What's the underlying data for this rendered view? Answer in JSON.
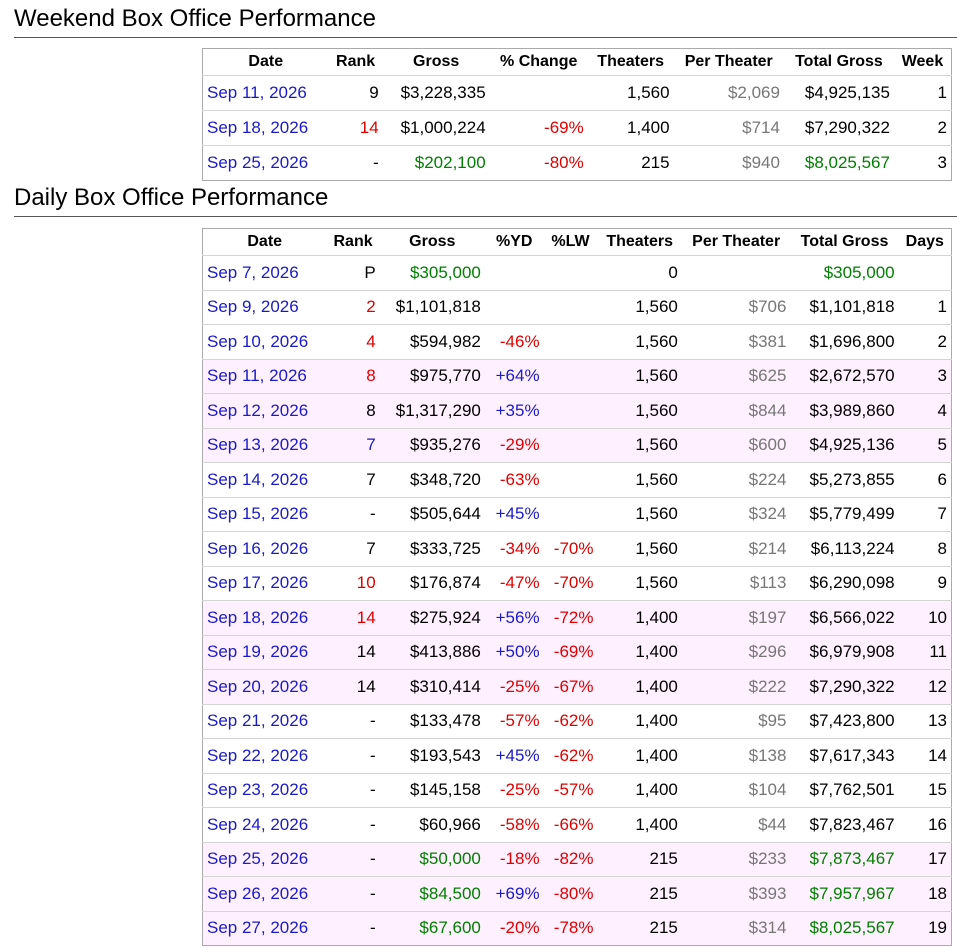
{
  "weekend": {
    "title": "Weekend Box Office Performance",
    "headers": [
      "Date",
      "Rank",
      "Gross",
      "% Change",
      "Theaters",
      "Per Theater",
      "Total Gross",
      "Week"
    ],
    "rows": [
      {
        "date": "Sep 11, 2026",
        "rank": "9",
        "rank_color": "black",
        "gross": "$3,228,335",
        "gross_color": "black",
        "change": "",
        "theaters": "1,560",
        "per_theater": "$2,069",
        "total": "$4,925,135",
        "total_color": "black",
        "week": "1"
      },
      {
        "date": "Sep 18, 2026",
        "rank": "14",
        "rank_color": "red",
        "gross": "$1,000,224",
        "gross_color": "black",
        "change": "-69%",
        "theaters": "1,400",
        "per_theater": "$714",
        "total": "$7,290,322",
        "total_color": "black",
        "week": "2"
      },
      {
        "date": "Sep 25, 2026",
        "rank": "-",
        "rank_color": "black",
        "gross": "$202,100",
        "gross_color": "green",
        "change": "-80%",
        "theaters": "215",
        "per_theater": "$940",
        "total": "$8,025,567",
        "total_color": "green",
        "week": "3"
      }
    ]
  },
  "daily": {
    "title": "Daily Box Office Performance",
    "headers": [
      "Date",
      "Rank",
      "Gross",
      "%YD",
      "%LW",
      "Theaters",
      "Per Theater",
      "Total Gross",
      "Days"
    ],
    "rows": [
      {
        "date": "Sep 7, 2026",
        "rank": "P",
        "rank_color": "black",
        "gross": "$305,000",
        "gross_color": "green",
        "yd": "",
        "yd_color": "black",
        "lw": "",
        "theaters": "0",
        "per_theater": "",
        "total": "$305,000",
        "total_color": "green",
        "days": "",
        "weekend": false
      },
      {
        "date": "Sep 9, 2026",
        "rank": "2",
        "rank_color": "red",
        "gross": "$1,101,818",
        "gross_color": "black",
        "yd": "",
        "yd_color": "black",
        "lw": "",
        "theaters": "1,560",
        "per_theater": "$706",
        "total": "$1,101,818",
        "total_color": "black",
        "days": "1",
        "weekend": false
      },
      {
        "date": "Sep 10, 2026",
        "rank": "4",
        "rank_color": "red",
        "gross": "$594,982",
        "gross_color": "black",
        "yd": "-46%",
        "yd_color": "red",
        "lw": "",
        "theaters": "1,560",
        "per_theater": "$381",
        "total": "$1,696,800",
        "total_color": "black",
        "days": "2",
        "weekend": false
      },
      {
        "date": "Sep 11, 2026",
        "rank": "8",
        "rank_color": "red",
        "gross": "$975,770",
        "gross_color": "black",
        "yd": "+64%",
        "yd_color": "blue",
        "lw": "",
        "theaters": "1,560",
        "per_theater": "$625",
        "total": "$2,672,570",
        "total_color": "black",
        "days": "3",
        "weekend": true
      },
      {
        "date": "Sep 12, 2026",
        "rank": "8",
        "rank_color": "black",
        "gross": "$1,317,290",
        "gross_color": "black",
        "yd": "+35%",
        "yd_color": "blue",
        "lw": "",
        "theaters": "1,560",
        "per_theater": "$844",
        "total": "$3,989,860",
        "total_color": "black",
        "days": "4",
        "weekend": true
      },
      {
        "date": "Sep 13, 2026",
        "rank": "7",
        "rank_color": "blue",
        "gross": "$935,276",
        "gross_color": "black",
        "yd": "-29%",
        "yd_color": "red",
        "lw": "",
        "theaters": "1,560",
        "per_theater": "$600",
        "total": "$4,925,136",
        "total_color": "black",
        "days": "5",
        "weekend": true
      },
      {
        "date": "Sep 14, 2026",
        "rank": "7",
        "rank_color": "black",
        "gross": "$348,720",
        "gross_color": "black",
        "yd": "-63%",
        "yd_color": "red",
        "lw": "",
        "theaters": "1,560",
        "per_theater": "$224",
        "total": "$5,273,855",
        "total_color": "black",
        "days": "6",
        "weekend": false
      },
      {
        "date": "Sep 15, 2026",
        "rank": "-",
        "rank_color": "black",
        "gross": "$505,644",
        "gross_color": "black",
        "yd": "+45%",
        "yd_color": "blue",
        "lw": "",
        "theaters": "1,560",
        "per_theater": "$324",
        "total": "$5,779,499",
        "total_color": "black",
        "days": "7",
        "weekend": false
      },
      {
        "date": "Sep 16, 2026",
        "rank": "7",
        "rank_color": "black",
        "gross": "$333,725",
        "gross_color": "black",
        "yd": "-34%",
        "yd_color": "red",
        "lw": "-70%",
        "theaters": "1,560",
        "per_theater": "$214",
        "total": "$6,113,224",
        "total_color": "black",
        "days": "8",
        "weekend": false
      },
      {
        "date": "Sep 17, 2026",
        "rank": "10",
        "rank_color": "red",
        "gross": "$176,874",
        "gross_color": "black",
        "yd": "-47%",
        "yd_color": "red",
        "lw": "-70%",
        "theaters": "1,560",
        "per_theater": "$113",
        "total": "$6,290,098",
        "total_color": "black",
        "days": "9",
        "weekend": false
      },
      {
        "date": "Sep 18, 2026",
        "rank": "14",
        "rank_color": "red",
        "gross": "$275,924",
        "gross_color": "black",
        "yd": "+56%",
        "yd_color": "blue",
        "lw": "-72%",
        "theaters": "1,400",
        "per_theater": "$197",
        "total": "$6,566,022",
        "total_color": "black",
        "days": "10",
        "weekend": true
      },
      {
        "date": "Sep 19, 2026",
        "rank": "14",
        "rank_color": "black",
        "gross": "$413,886",
        "gross_color": "black",
        "yd": "+50%",
        "yd_color": "blue",
        "lw": "-69%",
        "theaters": "1,400",
        "per_theater": "$296",
        "total": "$6,979,908",
        "total_color": "black",
        "days": "11",
        "weekend": true
      },
      {
        "date": "Sep 20, 2026",
        "rank": "14",
        "rank_color": "black",
        "gross": "$310,414",
        "gross_color": "black",
        "yd": "-25%",
        "yd_color": "red",
        "lw": "-67%",
        "theaters": "1,400",
        "per_theater": "$222",
        "total": "$7,290,322",
        "total_color": "black",
        "days": "12",
        "weekend": true
      },
      {
        "date": "Sep 21, 2026",
        "rank": "-",
        "rank_color": "black",
        "gross": "$133,478",
        "gross_color": "black",
        "yd": "-57%",
        "yd_color": "red",
        "lw": "-62%",
        "theaters": "1,400",
        "per_theater": "$95",
        "total": "$7,423,800",
        "total_color": "black",
        "days": "13",
        "weekend": false
      },
      {
        "date": "Sep 22, 2026",
        "rank": "-",
        "rank_color": "black",
        "gross": "$193,543",
        "gross_color": "black",
        "yd": "+45%",
        "yd_color": "blue",
        "lw": "-62%",
        "theaters": "1,400",
        "per_theater": "$138",
        "total": "$7,617,343",
        "total_color": "black",
        "days": "14",
        "weekend": false
      },
      {
        "date": "Sep 23, 2026",
        "rank": "-",
        "rank_color": "black",
        "gross": "$145,158",
        "gross_color": "black",
        "yd": "-25%",
        "yd_color": "red",
        "lw": "-57%",
        "theaters": "1,400",
        "per_theater": "$104",
        "total": "$7,762,501",
        "total_color": "black",
        "days": "15",
        "weekend": false
      },
      {
        "date": "Sep 24, 2026",
        "rank": "-",
        "rank_color": "black",
        "gross": "$60,966",
        "gross_color": "black",
        "yd": "-58%",
        "yd_color": "red",
        "lw": "-66%",
        "theaters": "1,400",
        "per_theater": "$44",
        "total": "$7,823,467",
        "total_color": "black",
        "days": "16",
        "weekend": false
      },
      {
        "date": "Sep 25, 2026",
        "rank": "-",
        "rank_color": "black",
        "gross": "$50,000",
        "gross_color": "green",
        "yd": "-18%",
        "yd_color": "red",
        "lw": "-82%",
        "theaters": "215",
        "per_theater": "$233",
        "total": "$7,873,467",
        "total_color": "green",
        "days": "17",
        "weekend": true
      },
      {
        "date": "Sep 26, 2026",
        "rank": "-",
        "rank_color": "black",
        "gross": "$84,500",
        "gross_color": "green",
        "yd": "+69%",
        "yd_color": "blue",
        "lw": "-80%",
        "theaters": "215",
        "per_theater": "$393",
        "total": "$7,957,967",
        "total_color": "green",
        "days": "18",
        "weekend": true
      },
      {
        "date": "Sep 27, 2026",
        "rank": "-",
        "rank_color": "black",
        "gross": "$67,600",
        "gross_color": "green",
        "yd": "-20%",
        "yd_color": "red",
        "lw": "-78%",
        "theaters": "215",
        "per_theater": "$314",
        "total": "$8,025,567",
        "total_color": "green",
        "days": "19",
        "weekend": true
      }
    ]
  }
}
